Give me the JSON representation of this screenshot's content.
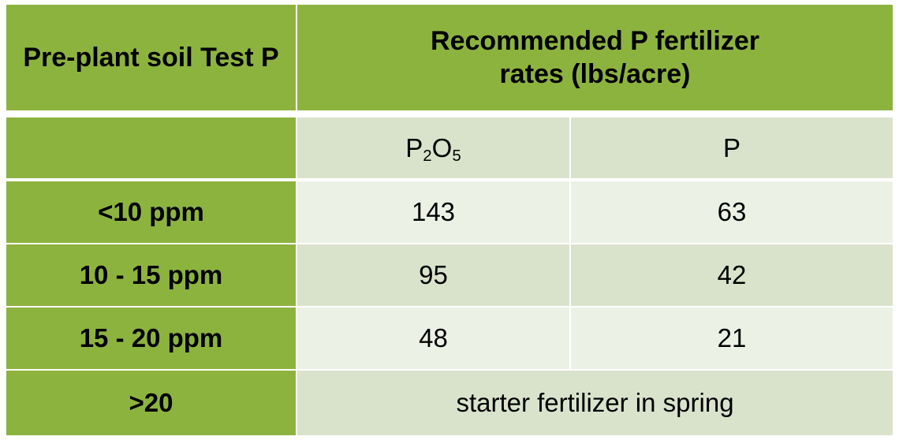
{
  "table": {
    "header": {
      "col1": "Pre-plant soil Test P",
      "col2": "Recommended P fertilizer rates (lbs/acre)"
    },
    "subheader": {
      "col1": "",
      "col2_base": "P",
      "col2_sub1": "2",
      "col2_mid": "O",
      "col2_sub2": "5",
      "col3": "P"
    },
    "rows": [
      {
        "label": "<10 ppm",
        "p2o5": "143",
        "p": "63"
      },
      {
        "label": "10 - 15 ppm",
        "p2o5": "95",
        "p": "42"
      },
      {
        "label": "15 - 20 ppm",
        "p2o5": "48",
        "p": "21"
      }
    ],
    "last_row": {
      "label": ">20",
      "value": "starter fertilizer in spring"
    }
  },
  "colors": {
    "header_green": "#8db33f",
    "light_green_1": "#d9e3cc",
    "light_green_2": "#ecf1e6"
  }
}
